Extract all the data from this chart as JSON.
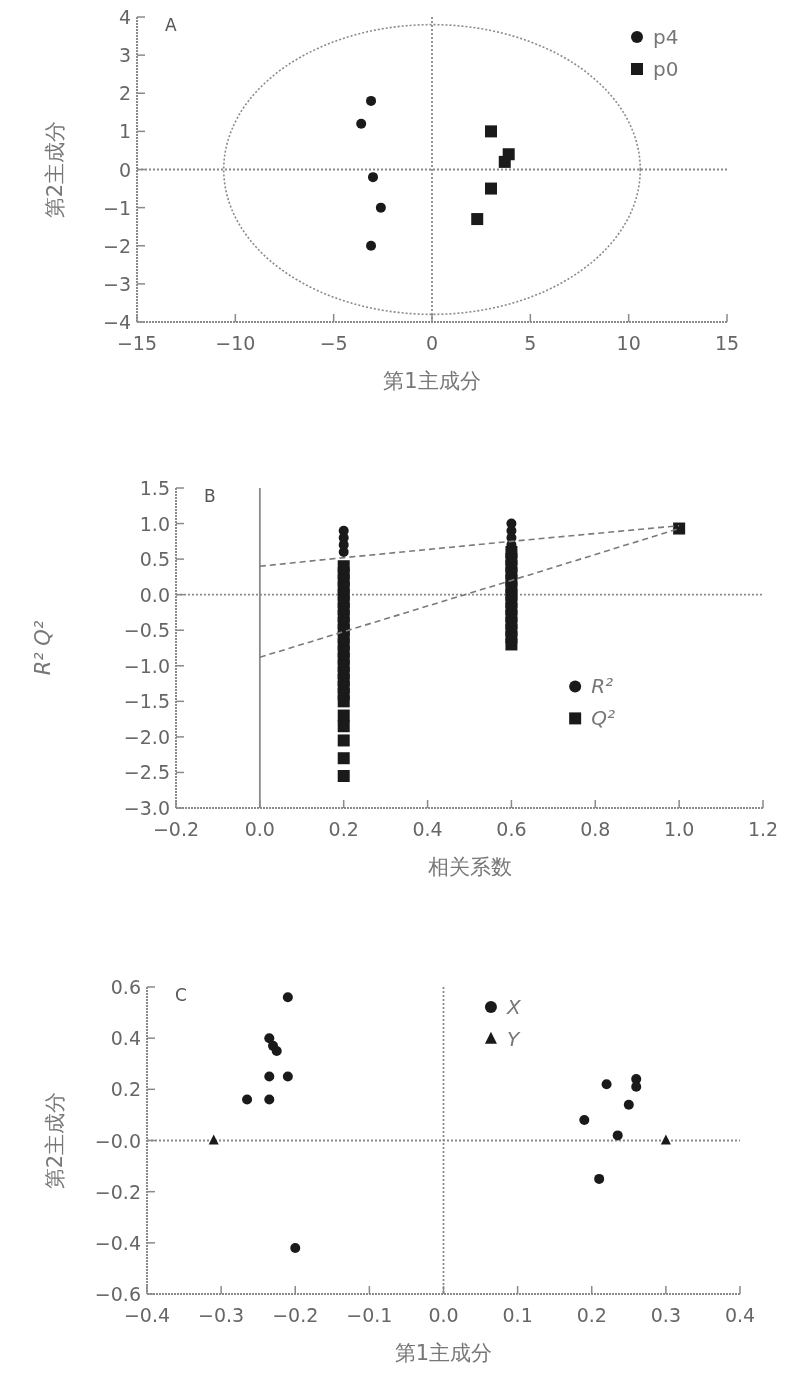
{
  "chart_data": [
    {
      "type": "scatter",
      "xlabel": "第1主成分",
      "ylabel": "第2主成分",
      "annotations": [
        "A"
      ],
      "xlim": [
        -15,
        15
      ],
      "ylim": [
        -4,
        4
      ],
      "xticks": [
        {
          "value": -15,
          "label": "−15"
        },
        {
          "value": -10,
          "label": "−10"
        },
        {
          "value": -5,
          "label": "−5"
        },
        0,
        5,
        10,
        15
      ],
      "yticks": [
        {
          "value": -4,
          "label": "−4"
        },
        {
          "value": -3,
          "label": "−3"
        },
        {
          "value": -2,
          "label": "−2"
        },
        {
          "value": -1,
          "label": "−1"
        },
        0,
        1,
        2,
        3,
        4
      ],
      "legend": "top right",
      "grid": false,
      "ref_lines": [
        {
          "axis": "x",
          "value": 0,
          "color": "#8a8a8a",
          "line_style": "dotted"
        },
        {
          "axis": "y",
          "value": 0,
          "color": "#8a8a8a",
          "line_style": "dotted"
        }
      ],
      "series": [
        {
          "name": "p4",
          "color": "#1a1a1a",
          "marker": "circle",
          "x": [
            -3.1,
            -3.6,
            -3.0,
            -2.6,
            -3.1
          ],
          "values": [
            1.8,
            1.2,
            -0.2,
            -1.0,
            -2.0
          ]
        },
        {
          "name": "p0",
          "color": "#1a1a1a",
          "marker": "square",
          "x": [
            3.0,
            3.9,
            3.7,
            3.0,
            2.3
          ],
          "values": [
            1.0,
            0.4,
            0.2,
            -0.5,
            -1.3
          ]
        }
      ]
    },
    {
      "type": "scatter",
      "xlabel": "相关系数",
      "ylabel": "R² Q²",
      "annotations": [
        "B"
      ],
      "xlim": [
        -0.2,
        1.2
      ],
      "ylim": [
        -3.0,
        1.5
      ],
      "xticks": [
        {
          "value": -0.2,
          "label": "−0.2"
        },
        {
          "value": 0,
          "label": "0.0"
        },
        0.2,
        0.4,
        0.6,
        0.8,
        {
          "value": 1,
          "label": "1.0"
        },
        1.2
      ],
      "yticks": [
        {
          "value": -3,
          "label": "−3.0"
        },
        {
          "value": -2.5,
          "label": "−2.5"
        },
        {
          "value": -2,
          "label": "−2.0"
        },
        {
          "value": -1.5,
          "label": "−1.5"
        },
        {
          "value": -1,
          "label": "−1.0"
        },
        {
          "value": -0.5,
          "label": "−0.5"
        },
        {
          "value": 0,
          "label": "0.0"
        },
        0.5,
        {
          "value": 1,
          "label": "1.0"
        },
        1.5
      ],
      "legend": "right",
      "grid": false,
      "ref_lines": [
        {
          "axis": "x",
          "value": 0,
          "color": "#8a8a8a",
          "line_style": "solid"
        },
        {
          "axis": "y",
          "value": 0,
          "color": "#8a8a8a",
          "line_style": "dotted"
        }
      ],
      "series": [
        {
          "name": "R²",
          "color": "#1a1a1a",
          "marker": "circle",
          "x": [
            0.2,
            0.2,
            0.2,
            0.2,
            0.6,
            0.6,
            0.6,
            0.6
          ],
          "values": [
            0.9,
            0.8,
            0.7,
            0.6,
            1.0,
            0.9,
            0.8,
            0.7
          ]
        },
        {
          "name": "Q²",
          "color": "#1a1a1a",
          "marker": "square",
          "x": [
            0.2,
            0.2,
            0.2,
            0.2,
            0.2,
            0.2,
            0.2,
            0.2,
            0.2,
            0.2,
            0.2,
            0.2,
            0.2,
            0.2,
            0.2,
            0.2,
            0.2,
            0.2,
            0.2,
            0.2,
            0.2,
            0.2,
            0.2,
            0.2,
            0.2,
            0.6,
            0.6,
            0.6,
            0.6,
            0.6,
            0.6,
            0.6,
            0.6,
            0.6,
            0.6,
            0.6,
            0.6,
            0.6,
            0.6,
            1.0
          ],
          "values": [
            0.4,
            0.3,
            0.2,
            0.1,
            0.0,
            -0.1,
            -0.2,
            -0.3,
            -0.4,
            -0.5,
            -0.6,
            -0.7,
            -0.8,
            -0.9,
            -1.0,
            -1.1,
            -1.2,
            -1.3,
            -1.4,
            -1.5,
            -1.7,
            -1.85,
            -2.05,
            -2.3,
            -2.55,
            0.6,
            0.5,
            0.4,
            0.3,
            0.2,
            0.1,
            0.0,
            -0.1,
            -0.2,
            -0.3,
            -0.4,
            -0.5,
            -0.6,
            -0.7,
            0.93
          ]
        },
        {
          "type": "line",
          "color": "#7a7a7a",
          "line_style": "dashed",
          "marker": "none",
          "x": [
            0,
            0.2,
            0.6,
            1.0
          ],
          "values": [
            0.4,
            0.52,
            0.75,
            0.97
          ]
        },
        {
          "type": "line",
          "color": "#7a7a7a",
          "line_style": "dashed",
          "marker": "none",
          "x": [
            0,
            0.2,
            0.6,
            1.0
          ],
          "values": [
            -0.88,
            -0.52,
            0.2,
            0.93
          ]
        }
      ]
    },
    {
      "type": "scatter",
      "xlabel": "第1主成分",
      "ylabel": "第2主成分",
      "annotations": [
        "C"
      ],
      "xlim": [
        -0.4,
        0.4
      ],
      "ylim": [
        -0.6,
        0.6
      ],
      "xticks": [
        {
          "value": -0.4,
          "label": "−0.4"
        },
        {
          "value": -0.3,
          "label": "−0.3"
        },
        {
          "value": -0.2,
          "label": "−0.2"
        },
        {
          "value": -0.1,
          "label": "−0.1"
        },
        {
          "value": 0,
          "label": "0.0"
        },
        0.1,
        0.2,
        0.3,
        0.4
      ],
      "yticks": [
        {
          "value": -0.6,
          "label": "−0.6"
        },
        {
          "value": -0.4,
          "label": "−0.4"
        },
        {
          "value": -0.2,
          "label": "−0.2"
        },
        {
          "value": 0,
          "label": "−0.0"
        },
        0.2,
        0.4,
        0.6
      ],
      "legend": "top",
      "grid": false,
      "ref_lines": [
        {
          "axis": "x",
          "value": 0,
          "color": "#8a8a8a",
          "line_style": "dotted"
        },
        {
          "axis": "y",
          "value": 0,
          "color": "#8a8a8a",
          "line_style": "dotted"
        }
      ],
      "series": [
        {
          "name": "X",
          "color": "#1a1a1a",
          "marker": "circle",
          "x": [
            -0.21,
            -0.235,
            -0.23,
            -0.225,
            -0.235,
            -0.21,
            -0.265,
            -0.235,
            -0.2,
            0.22,
            0.26,
            0.26,
            0.25,
            0.19,
            0.235,
            0.21
          ],
          "values": [
            0.56,
            0.4,
            0.37,
            0.35,
            0.25,
            0.25,
            0.16,
            0.16,
            -0.42,
            0.22,
            0.24,
            0.21,
            0.14,
            0.08,
            0.02,
            -0.15
          ]
        },
        {
          "name": "Y",
          "color": "#1a1a1a",
          "marker": "triangle",
          "x": [
            -0.31,
            0.3
          ],
          "values": [
            0.0,
            0.0
          ]
        }
      ]
    }
  ]
}
